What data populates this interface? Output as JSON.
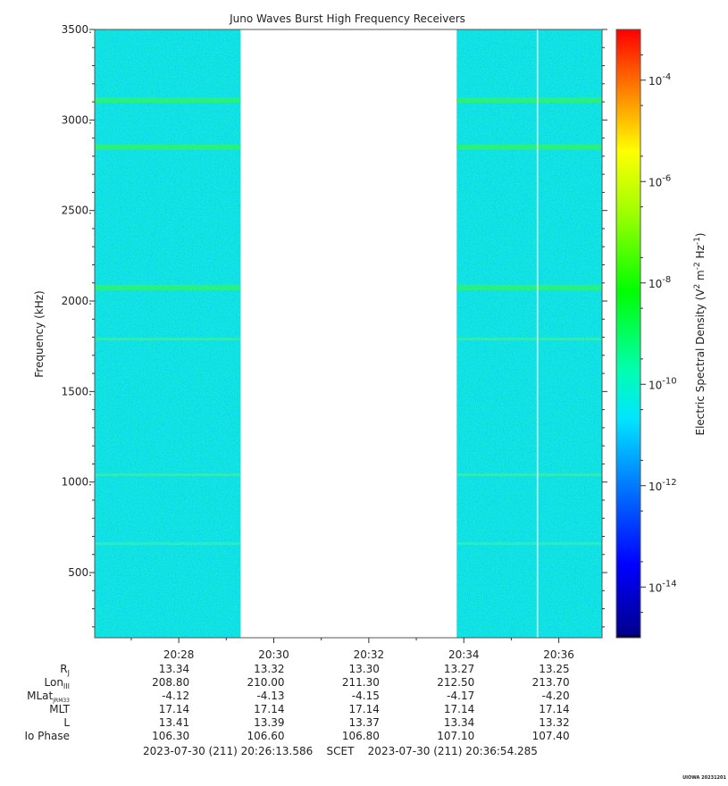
{
  "chart_data": {
    "type": "heatmap",
    "title": "Juno Waves Burst High Frequency Receivers",
    "ylabel": "Frequency (kHz)",
    "ylim": [
      140,
      3500
    ],
    "y_ticks": [
      "3500.",
      "3000.",
      "2500.",
      "2000.",
      "1500.",
      "1000.",
      "500."
    ],
    "y_tick_values": [
      3500,
      3000,
      2500,
      2000,
      1500,
      1000,
      500
    ],
    "x_tick_labels": [
      "20:28",
      "20:30",
      "20:32",
      "20:34",
      "20:36"
    ],
    "x_tick_minutes": [
      28,
      30,
      32,
      34,
      36
    ],
    "x_range_minutes": [
      26.23,
      36.91
    ],
    "data_gaps_minutes": [
      [
        29.3,
        33.85
      ]
    ],
    "vertical_gap_minute": 35.55,
    "emission_bands_khz": [
      3110,
      2850,
      2075,
      1790,
      1040,
      660
    ],
    "background_level": "1e-12 to 1e-11",
    "colorbar": {
      "label": "Electric Spectral Density (V2 m-2 Hz-1)",
      "label_parts": [
        "Electric Spectral Density (V",
        "2",
        " m",
        "-2",
        " Hz",
        "-1",
        ")"
      ],
      "ticks": [
        {
          "base": "10",
          "exp": "-4",
          "log": -4
        },
        {
          "base": "10",
          "exp": "-6",
          "log": -6
        },
        {
          "base": "10",
          "exp": "-8",
          "log": -8
        },
        {
          "base": "10",
          "exp": "-10",
          "log": -10
        },
        {
          "base": "10",
          "exp": "-12",
          "log": -12
        },
        {
          "base": "10",
          "exp": "-14",
          "log": -14
        }
      ],
      "range_log": [
        -15,
        -3
      ]
    },
    "ephemeris": {
      "rows": [
        {
          "label": "R",
          "sub": "J",
          "values": [
            "13.34",
            "13.32",
            "13.30",
            "13.27",
            "13.25"
          ]
        },
        {
          "label": "Lon",
          "sub": "III",
          "values": [
            "208.80",
            "210.00",
            "211.30",
            "212.50",
            "213.70"
          ]
        },
        {
          "label": "MLat",
          "sub": "JRM33",
          "values": [
            "-4.12",
            "-4.13",
            "-4.15",
            "-4.17",
            "-4.20"
          ]
        },
        {
          "label": "MLT",
          "sub": "",
          "values": [
            "17.14",
            "17.14",
            "17.14",
            "17.14",
            "17.14"
          ]
        },
        {
          "label": "L",
          "sub": "",
          "values": [
            "13.41",
            "13.39",
            "13.37",
            "13.34",
            "13.32"
          ]
        },
        {
          "label": "Io Phase",
          "sub": "",
          "values": [
            "106.30",
            "106.60",
            "106.80",
            "107.10",
            "107.40"
          ]
        }
      ]
    },
    "time_range": "2023-07-30 (211) 20:26:13.586    SCET    2023-07-30 (211) 20:36:54.285"
  },
  "credit": "UIOWA 20231201"
}
